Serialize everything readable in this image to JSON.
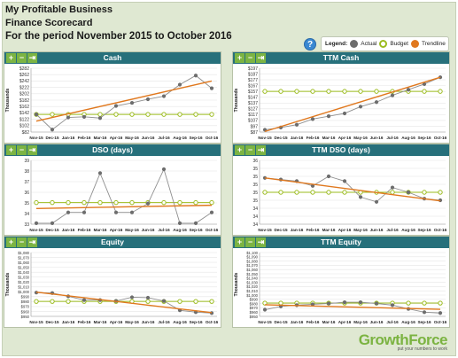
{
  "header": {
    "company": "My Profitable Business",
    "scorecard": "Finance Scorecard",
    "period": "For the period November 2015 to October 2016"
  },
  "help": {
    "icon": "help-icon",
    "label": "?"
  },
  "legend": {
    "title": "Legend:",
    "actual": "Actual",
    "budget": "Budget",
    "trendline": "Trendline"
  },
  "toolbar": {
    "plus": "+",
    "minus": "−",
    "export": "⇥"
  },
  "colors": {
    "actual": "#6d6d6d",
    "budget": "#9bbb1e",
    "trend": "#e0781e",
    "title_bar": "#27707b"
  },
  "logo": {
    "brand_a": "Growth",
    "brand_b": "Force",
    "tagline": "put your numbers to work"
  },
  "months": [
    "Nov-15",
    "Dec-15",
    "Jan-16",
    "Feb-16",
    "Mar-16",
    "Apr-16",
    "May-16",
    "Jun-16",
    "Jul-16",
    "Aug-16",
    "Sep-16",
    "Oct-16"
  ],
  "chart_data": [
    {
      "id": "cash",
      "title": "Cash",
      "type": "line",
      "ylabel": "Thousands",
      "yticks": [
        "$82",
        "$102",
        "$122",
        "$142",
        "$162",
        "$182",
        "$202",
        "$222",
        "$242",
        "$262",
        "$282"
      ],
      "ylim": [
        82,
        292
      ],
      "series": [
        {
          "name": "Actual",
          "values": [
            140,
            90,
            130,
            132,
            128,
            168,
            178,
            190,
            200,
            238,
            268,
            226
          ]
        },
        {
          "name": "Budget",
          "values": [
            140,
            140,
            140,
            140,
            140,
            140,
            140,
            140,
            140,
            140,
            140,
            140
          ]
        },
        {
          "name": "Trendline",
          "values": [
            118,
            130,
            142,
            154,
            166,
            178,
            190,
            202,
            214,
            226,
            238,
            250
          ]
        }
      ]
    },
    {
      "id": "ttm-cash",
      "title": "TTM Cash",
      "type": "line",
      "ylabel": "Thousands",
      "yticks": [
        "$87",
        "$97",
        "$107",
        "$117",
        "$127",
        "$137",
        "$147",
        "$157",
        "$167",
        "$177",
        "$187",
        "$197"
      ],
      "ylim": [
        87,
        200
      ],
      "series": [
        {
          "name": "Actual",
          "values": [
            91,
            95,
            100,
            110,
            115,
            120,
            132,
            140,
            152,
            162,
            172,
            184
          ]
        },
        {
          "name": "Budget",
          "values": [
            159,
            159,
            159,
            159,
            159,
            159,
            159,
            159,
            159,
            159,
            159,
            159
          ]
        },
        {
          "name": "Trendline",
          "values": [
            88,
            97,
            106,
            114,
            123,
            132,
            140,
            149,
            158,
            166,
            175,
            184
          ]
        }
      ]
    },
    {
      "id": "dso",
      "title": "DSO (days)",
      "type": "line",
      "ylabel": "",
      "yticks": [
        "33",
        "34",
        "35",
        "36",
        "37",
        "38",
        "39"
      ],
      "ylim": [
        33,
        39.5
      ],
      "series": [
        {
          "name": "Actual",
          "values": [
            33.1,
            33.1,
            34.2,
            34.2,
            38.2,
            34.2,
            34.2,
            35.1,
            38.6,
            33.1,
            33.1,
            34.2
          ]
        },
        {
          "name": "Budget",
          "values": [
            35.2,
            35.2,
            35.2,
            35.2,
            35.2,
            35.2,
            35.2,
            35.2,
            35.2,
            35.2,
            35.2,
            35.2
          ]
        },
        {
          "name": "Trendline",
          "values": [
            34.6,
            34.63,
            34.66,
            34.69,
            34.72,
            34.75,
            34.78,
            34.81,
            34.84,
            34.87,
            34.9,
            34.93
          ]
        }
      ]
    },
    {
      "id": "ttm-dso",
      "title": "TTM DSO (days)",
      "type": "line",
      "ylabel": "",
      "yticks": [
        "34",
        "34",
        "34",
        "35",
        "35",
        "35",
        "35",
        "35",
        "36"
      ],
      "ylim": [
        34,
        36
      ],
      "series": [
        {
          "name": "Actual",
          "values": [
            35.45,
            35.4,
            35.35,
            35.2,
            35.5,
            35.35,
            34.85,
            34.7,
            35.15,
            35.0,
            34.8,
            34.75
          ]
        },
        {
          "name": "Budget",
          "values": [
            35.0,
            35.0,
            35.0,
            35.0,
            35.0,
            35.0,
            35.0,
            35.0,
            35.0,
            35.0,
            35.0,
            35.0
          ]
        },
        {
          "name": "Trendline",
          "values": [
            35.45,
            35.38,
            35.32,
            35.25,
            35.19,
            35.12,
            35.06,
            34.99,
            34.93,
            34.86,
            34.8,
            34.73
          ]
        }
      ]
    },
    {
      "id": "equity",
      "title": "Equity",
      "type": "line",
      "ylabel": "Thousands",
      "yticks": [
        "$950",
        "$960",
        "$970",
        "$980",
        "$990",
        "$1,000",
        "$1,010",
        "$1,020",
        "$1,030",
        "$1,040",
        "$1,050",
        "$1,060",
        "$1,070",
        "$1,080"
      ],
      "ylim": [
        948,
        1085
      ],
      "series": [
        {
          "name": "Actual",
          "values": [
            999,
            998,
            991,
            983,
            983,
            981,
            989,
            988,
            981,
            961,
            957,
            955
          ]
        },
        {
          "name": "Budget",
          "values": [
            980,
            980,
            980,
            980,
            980,
            980,
            980,
            980,
            980,
            980,
            980,
            980
          ]
        },
        {
          "name": "Trendline",
          "values": [
            1000,
            996,
            992,
            988,
            984,
            980,
            976,
            972,
            968,
            964,
            960,
            956
          ]
        }
      ]
    },
    {
      "id": "ttm-equity",
      "title": "TTM Equity",
      "type": "line",
      "ylabel": "Thousands",
      "yticks": [
        "$950",
        "$960",
        "$970",
        "$980",
        "$990",
        "$1,000",
        "$1,010",
        "$1,020",
        "$1,030",
        "$1,040",
        "$1,050",
        "$1,060",
        "$1,070",
        "$1,080",
        "$1,090",
        "$1,100"
      ],
      "ylim": [
        948,
        1102
      ],
      "series": [
        {
          "name": "Actual",
          "values": [
            964,
            972,
            975,
            977,
            979,
            982,
            982,
            979,
            975,
            966,
            958,
            956
          ]
        },
        {
          "name": "Budget",
          "values": [
            980,
            980,
            980,
            980,
            980,
            980,
            980,
            980,
            980,
            980,
            980,
            980
          ]
        },
        {
          "name": "Trendline",
          "values": [
            976,
            975,
            974,
            973,
            972,
            971,
            970,
            969,
            968,
            967,
            966,
            965
          ]
        }
      ]
    }
  ]
}
